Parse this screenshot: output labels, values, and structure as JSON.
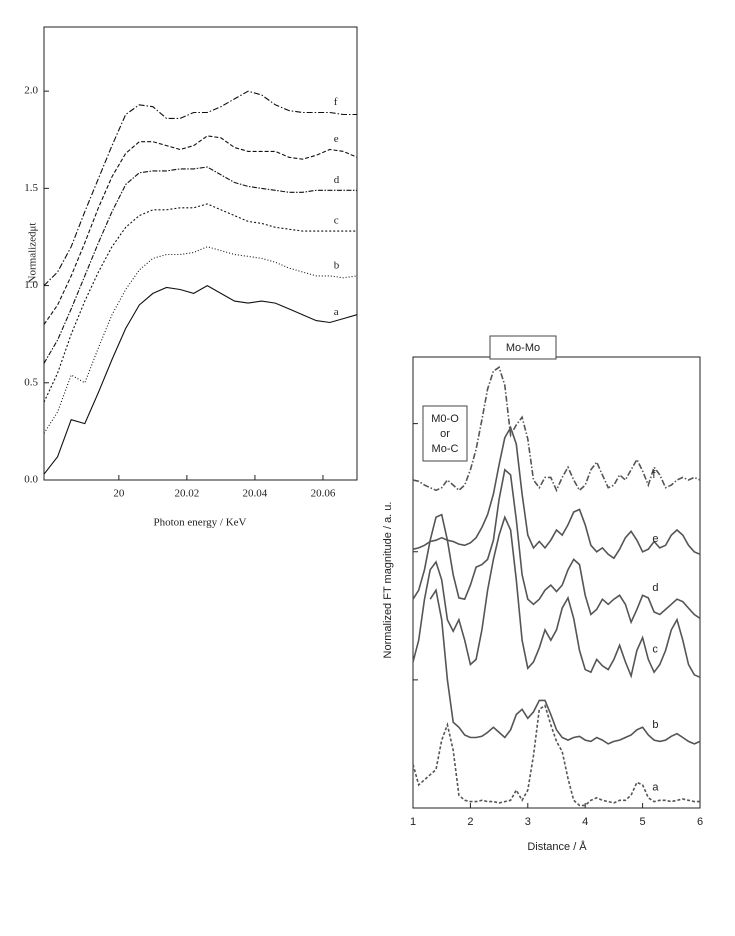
{
  "chart_data": [
    {
      "type": "line",
      "ylabel": "Normalizedμt",
      "xlabel": "Photon energy / KeV",
      "xlim": [
        19.978,
        20.07
      ],
      "ylim": [
        0,
        2.33
      ],
      "xticks": [
        20,
        20.02,
        20.04,
        20.06
      ],
      "yticks": [
        {
          "value": 0,
          "label": "0.0"
        },
        0.5,
        {
          "value": 1,
          "label": "1.0"
        },
        1.5,
        {
          "value": 2,
          "label": "2.0"
        }
      ],
      "x": [
        19.978,
        19.982,
        19.986,
        19.99,
        19.994,
        19.998,
        20.002,
        20.006,
        20.01,
        20.014,
        20.018,
        20.022,
        20.026,
        20.03,
        20.034,
        20.038,
        20.042,
        20.046,
        20.05,
        20.054,
        20.058,
        20.062,
        20.066,
        20.07
      ],
      "series": [
        {
          "name": "a",
          "color": "#111",
          "dash": "none",
          "values": [
            0.03,
            0.12,
            0.31,
            0.29,
            0.45,
            0.62,
            0.78,
            0.9,
            0.96,
            0.99,
            0.98,
            0.96,
            1.0,
            0.96,
            0.92,
            0.91,
            0.92,
            0.91,
            0.88,
            0.85,
            0.82,
            0.81,
            0.83,
            0.85
          ]
        },
        {
          "name": "b",
          "color": "#111",
          "dash": "1 2",
          "values": [
            0.24,
            0.35,
            0.54,
            0.5,
            0.68,
            0.85,
            0.98,
            1.08,
            1.14,
            1.16,
            1.16,
            1.17,
            1.2,
            1.18,
            1.16,
            1.15,
            1.14,
            1.12,
            1.09,
            1.07,
            1.05,
            1.05,
            1.04,
            1.05
          ]
        },
        {
          "name": "c",
          "color": "#111",
          "dash": "2 2",
          "values": [
            0.4,
            0.55,
            0.75,
            0.92,
            1.07,
            1.2,
            1.3,
            1.36,
            1.39,
            1.39,
            1.4,
            1.4,
            1.42,
            1.39,
            1.36,
            1.33,
            1.32,
            1.3,
            1.29,
            1.28,
            1.28,
            1.28,
            1.28,
            1.28
          ]
        },
        {
          "name": "d",
          "color": "#111",
          "dash": "5 1.5 1.5 1.5",
          "values": [
            0.6,
            0.72,
            0.88,
            1.05,
            1.22,
            1.38,
            1.52,
            1.58,
            1.59,
            1.59,
            1.6,
            1.6,
            1.61,
            1.57,
            1.53,
            1.51,
            1.5,
            1.49,
            1.48,
            1.48,
            1.49,
            1.49,
            1.49,
            1.49
          ]
        },
        {
          "name": "e",
          "color": "#111",
          "dash": "4 2",
          "values": [
            0.8,
            0.9,
            1.05,
            1.22,
            1.4,
            1.56,
            1.68,
            1.74,
            1.74,
            1.72,
            1.7,
            1.72,
            1.77,
            1.76,
            1.71,
            1.69,
            1.69,
            1.69,
            1.66,
            1.65,
            1.67,
            1.7,
            1.69,
            1.66
          ]
        },
        {
          "name": "f",
          "color": "#111",
          "dash": "6 2 1.5 2",
          "values": [
            1.0,
            1.07,
            1.2,
            1.38,
            1.55,
            1.72,
            1.88,
            1.93,
            1.92,
            1.86,
            1.86,
            1.89,
            1.89,
            1.92,
            1.96,
            2.0,
            1.98,
            1.93,
            1.9,
            1.89,
            1.89,
            1.89,
            1.88,
            1.88
          ]
        }
      ]
    },
    {
      "type": "line",
      "ylabel": "Normalized FT magnitude / a. u.",
      "xlabel": "Distance / Å",
      "annotations": [
        {
          "lines": [
            "Mo-Mo"
          ]
        },
        {
          "lines": [
            "M0-O",
            "or",
            "Mo-C"
          ]
        }
      ],
      "xlim": [
        1,
        6
      ],
      "ylim": [
        0,
        3.52
      ],
      "xticks": [
        1,
        2,
        3,
        4,
        5,
        6
      ],
      "yticks": [
        0,
        1,
        2,
        3
      ],
      "x": [
        1.0,
        1.1,
        1.2,
        1.3,
        1.4,
        1.5,
        1.6,
        1.7,
        1.8,
        1.9,
        2.0,
        2.1,
        2.2,
        2.3,
        2.4,
        2.5,
        2.6,
        2.7,
        2.8,
        2.9,
        3.0,
        3.1,
        3.2,
        3.3,
        3.4,
        3.5,
        3.6,
        3.7,
        3.8,
        3.9,
        4.0,
        4.1,
        4.2,
        4.3,
        4.4,
        4.5,
        4.6,
        4.7,
        4.8,
        4.9,
        5.0,
        5.1,
        5.2,
        5.3,
        5.4,
        5.5,
        5.6,
        5.7,
        5.8,
        5.9,
        6.0
      ],
      "series": [
        {
          "name": "a",
          "color": "#555",
          "dash": "3 2",
          "values": [
            0.34,
            0.18,
            0.22,
            0.26,
            0.3,
            0.53,
            0.65,
            0.45,
            0.1,
            0.06,
            0.05,
            0.05,
            0.06,
            0.05,
            0.05,
            0.04,
            0.05,
            0.06,
            0.14,
            0.06,
            0.14,
            0.41,
            0.77,
            0.8,
            0.65,
            0.52,
            0.44,
            0.23,
            0.06,
            0.02,
            0.02,
            0.06,
            0.08,
            0.06,
            0.05,
            0.04,
            0.06,
            0.06,
            0.1,
            0.2,
            0.18,
            0.08,
            0.05,
            0.06,
            0.06,
            0.05,
            0.06,
            0.07,
            0.06,
            0.05,
            0.05
          ]
        },
        {
          "name": "b",
          "color": "#555",
          "dash": "none",
          "values": [
            null,
            null,
            null,
            1.63,
            1.7,
            1.47,
            1.0,
            0.67,
            0.63,
            0.57,
            0.55,
            0.55,
            0.56,
            0.59,
            0.63,
            0.59,
            0.55,
            0.61,
            0.73,
            0.77,
            0.7,
            0.75,
            0.84,
            0.84,
            0.73,
            0.61,
            0.55,
            0.53,
            0.55,
            0.56,
            0.53,
            0.52,
            0.55,
            0.53,
            0.5,
            0.52,
            0.53,
            0.55,
            0.57,
            0.61,
            0.63,
            0.57,
            0.53,
            0.52,
            0.53,
            0.56,
            0.58,
            0.55,
            0.52,
            0.5,
            0.52
          ]
        },
        {
          "name": "c",
          "color": "#555",
          "dash": "none",
          "values": [
            1.14,
            1.31,
            1.63,
            1.86,
            1.92,
            1.78,
            1.47,
            1.38,
            1.47,
            1.31,
            1.12,
            1.16,
            1.39,
            1.7,
            1.94,
            2.13,
            2.27,
            2.17,
            1.78,
            1.31,
            1.09,
            1.14,
            1.25,
            1.39,
            1.31,
            1.39,
            1.56,
            1.64,
            1.48,
            1.23,
            1.08,
            1.06,
            1.16,
            1.11,
            1.08,
            1.16,
            1.27,
            1.14,
            1.03,
            1.23,
            1.33,
            1.16,
            1.06,
            1.12,
            1.23,
            1.39,
            1.47,
            1.31,
            1.12,
            1.04,
            1.02
          ]
        },
        {
          "name": "d",
          "color": "#555",
          "dash": "none",
          "values": [
            1.63,
            1.7,
            1.86,
            2.09,
            2.27,
            2.29,
            2.09,
            1.82,
            1.64,
            1.63,
            1.74,
            1.88,
            1.9,
            1.94,
            2.09,
            2.41,
            2.64,
            2.6,
            2.25,
            1.82,
            1.63,
            1.59,
            1.63,
            1.7,
            1.74,
            1.69,
            1.74,
            1.86,
            1.94,
            1.9,
            1.66,
            1.51,
            1.55,
            1.63,
            1.59,
            1.63,
            1.66,
            1.59,
            1.45,
            1.55,
            1.66,
            1.64,
            1.53,
            1.51,
            1.55,
            1.59,
            1.63,
            1.61,
            1.56,
            1.51,
            1.48
          ]
        },
        {
          "name": "e",
          "color": "#555",
          "dash": "none",
          "values": [
            2.02,
            2.03,
            2.05,
            2.08,
            2.09,
            2.11,
            2.09,
            2.08,
            2.06,
            2.05,
            2.07,
            2.11,
            2.19,
            2.29,
            2.45,
            2.68,
            2.89,
            2.97,
            2.84,
            2.45,
            2.13,
            2.03,
            2.08,
            2.03,
            2.09,
            2.17,
            2.13,
            2.21,
            2.31,
            2.33,
            2.21,
            2.05,
            2.0,
            2.03,
            1.98,
            1.95,
            2.02,
            2.11,
            2.16,
            2.09,
            2.0,
            2.02,
            2.08,
            2.03,
            2.05,
            2.13,
            2.17,
            2.13,
            2.05,
            2.0,
            1.98
          ]
        },
        {
          "name": "f",
          "color": "#555",
          "dash": "6 2 1.5 2",
          "values": [
            2.56,
            2.55,
            2.52,
            2.5,
            2.48,
            2.5,
            2.56,
            2.52,
            2.48,
            2.52,
            2.64,
            2.8,
            3.03,
            3.27,
            3.41,
            3.44,
            3.3,
            2.91,
            2.99,
            3.05,
            2.88,
            2.56,
            2.5,
            2.58,
            2.58,
            2.48,
            2.58,
            2.66,
            2.56,
            2.48,
            2.52,
            2.64,
            2.7,
            2.6,
            2.5,
            2.52,
            2.6,
            2.56,
            2.64,
            2.72,
            2.63,
            2.52,
            2.66,
            2.6,
            2.5,
            2.52,
            2.56,
            2.58,
            2.56,
            2.58,
            2.56
          ]
        }
      ]
    }
  ]
}
